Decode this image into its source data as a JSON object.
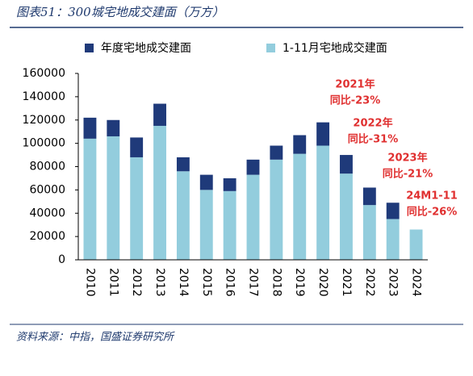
{
  "chart_data": {
    "type": "bar",
    "stacked": true,
    "title": "图表51：300城宅地成交建面（万方）",
    "source": "资料来源：中指，国盛证券研究所",
    "categories": [
      "2010",
      "2011",
      "2012",
      "2013",
      "2014",
      "2015",
      "2016",
      "2017",
      "2018",
      "2019",
      "2020",
      "2021",
      "2022",
      "2023",
      "2024"
    ],
    "series": [
      {
        "name": "1-11月宅地成交建面",
        "color": "#93cddd",
        "values": [
          104000,
          106000,
          88000,
          115000,
          76000,
          60000,
          59000,
          73000,
          86000,
          91000,
          98000,
          74000,
          47000,
          35000,
          26000
        ]
      },
      {
        "name": "年度宅地成交建面",
        "color": "#1f3a7a",
        "values": [
          18000,
          14000,
          17000,
          19000,
          12000,
          13000,
          11000,
          13000,
          12000,
          16000,
          20000,
          16000,
          15000,
          14000,
          null
        ]
      }
    ],
    "ylim": [
      0,
      160000
    ],
    "yticks": [
      0,
      20000,
      40000,
      60000,
      80000,
      100000,
      120000,
      140000,
      160000
    ],
    "annotations": [
      {
        "lines": [
          "2021年",
          "同比-23%"
        ]
      },
      {
        "lines": [
          "2022年",
          "同比-31%"
        ]
      },
      {
        "lines": [
          "2023年",
          "同比-21%"
        ]
      },
      {
        "lines": [
          "24M1-11",
          "同比-26%"
        ]
      }
    ]
  }
}
